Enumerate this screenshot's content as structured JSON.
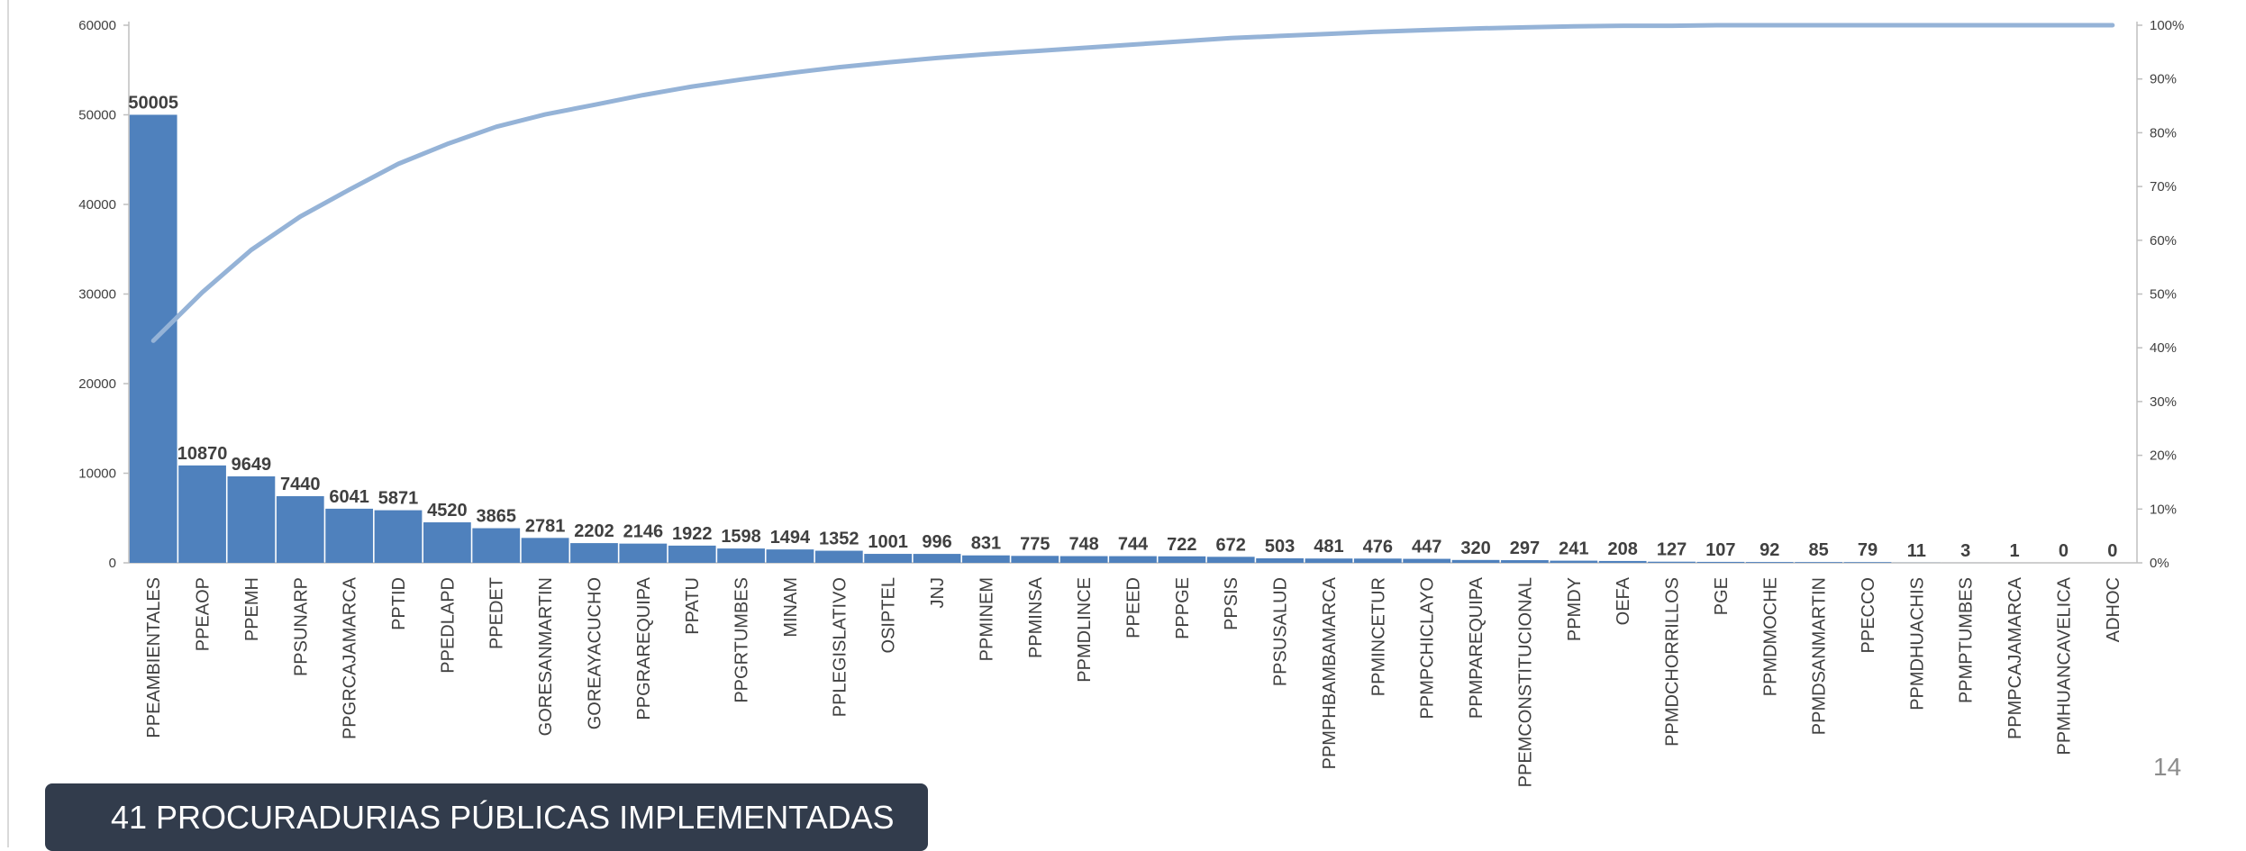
{
  "colors": {
    "bar": "#4f81bd",
    "line": "#95b3d7",
    "axis": "#bfbfbf",
    "banner_bg": "#323c4c"
  },
  "banner": {
    "text": "41 PROCURADURIAS PÚBLICAS IMPLEMENTADAS"
  },
  "page_number": "14",
  "chart_data": {
    "type": "bar",
    "title": "",
    "xlabel": "",
    "ylabel": "",
    "ylim": [
      0,
      60000
    ],
    "yticks": [
      "0",
      "10000",
      "20000",
      "30000",
      "40000",
      "50000",
      "60000"
    ],
    "y2lim": [
      0,
      1
    ],
    "y2ticks": [
      "0%",
      "10%",
      "20%",
      "30%",
      "40%",
      "50%",
      "60%",
      "70%",
      "80%",
      "90%",
      "100%"
    ],
    "grid": false,
    "legend": "none",
    "categories": [
      "PPEAMBIENTALES",
      "PPEAOP",
      "PPEMH",
      "PPSUNARP",
      "PPGRCAJAMARCA",
      "PPTID",
      "PPEDLAPD",
      "PPEDET",
      "GORESANMARTIN",
      "GOREAYACUCHO",
      "PPGRAREQUIPA",
      "PPATU",
      "PPGRTUMBES",
      "MINAM",
      "PPLEGISLATIVO",
      "OSIPTEL",
      "JNJ",
      "PPMINEM",
      "PPMINSA",
      "PPMDLINCE",
      "PPEED",
      "PPPGE",
      "PPSIS",
      "PPSUSALUD",
      "PPMPHBAMBAMARCA",
      "PPMINCETUR",
      "PPMPCHICLAYO",
      "PPMPAREQUIPA",
      "PPEMCONSTITUCIONAL",
      "PPMDY",
      "OEFA",
      "PPMDCHORRILLOS",
      "PGE",
      "PPMDMOCHE",
      "PPMDSANMARTIN",
      "PPECCO",
      "PPMDHUACHIS",
      "PPMPTUMBES",
      "PPMPCAJAMARCA",
      "PPMHUANCAVELICA",
      "ADHOC"
    ],
    "series": [
      {
        "type": "bar",
        "values": [
          50005,
          10870,
          9649,
          7440,
          6041,
          5871,
          4520,
          3865,
          2781,
          2202,
          2146,
          1922,
          1598,
          1494,
          1352,
          1001,
          996,
          831,
          775,
          748,
          744,
          722,
          672,
          503,
          481,
          476,
          447,
          320,
          297,
          241,
          208,
          127,
          107,
          92,
          85,
          79,
          11,
          3,
          1,
          0,
          0
        ]
      },
      {
        "type": "line",
        "axis": "secondary",
        "values": [
          0.413,
          0.503,
          0.582,
          0.644,
          0.694,
          0.742,
          0.779,
          0.811,
          0.834,
          0.852,
          0.87,
          0.886,
          0.899,
          0.911,
          0.922,
          0.931,
          0.939,
          0.946,
          0.952,
          0.958,
          0.964,
          0.97,
          0.976,
          0.98,
          0.984,
          0.988,
          0.991,
          0.994,
          0.996,
          0.998,
          0.999,
          0.999,
          1.0,
          1.0,
          1.0,
          1.0,
          1.0,
          1.0,
          1.0,
          1.0,
          1.0
        ]
      }
    ]
  }
}
